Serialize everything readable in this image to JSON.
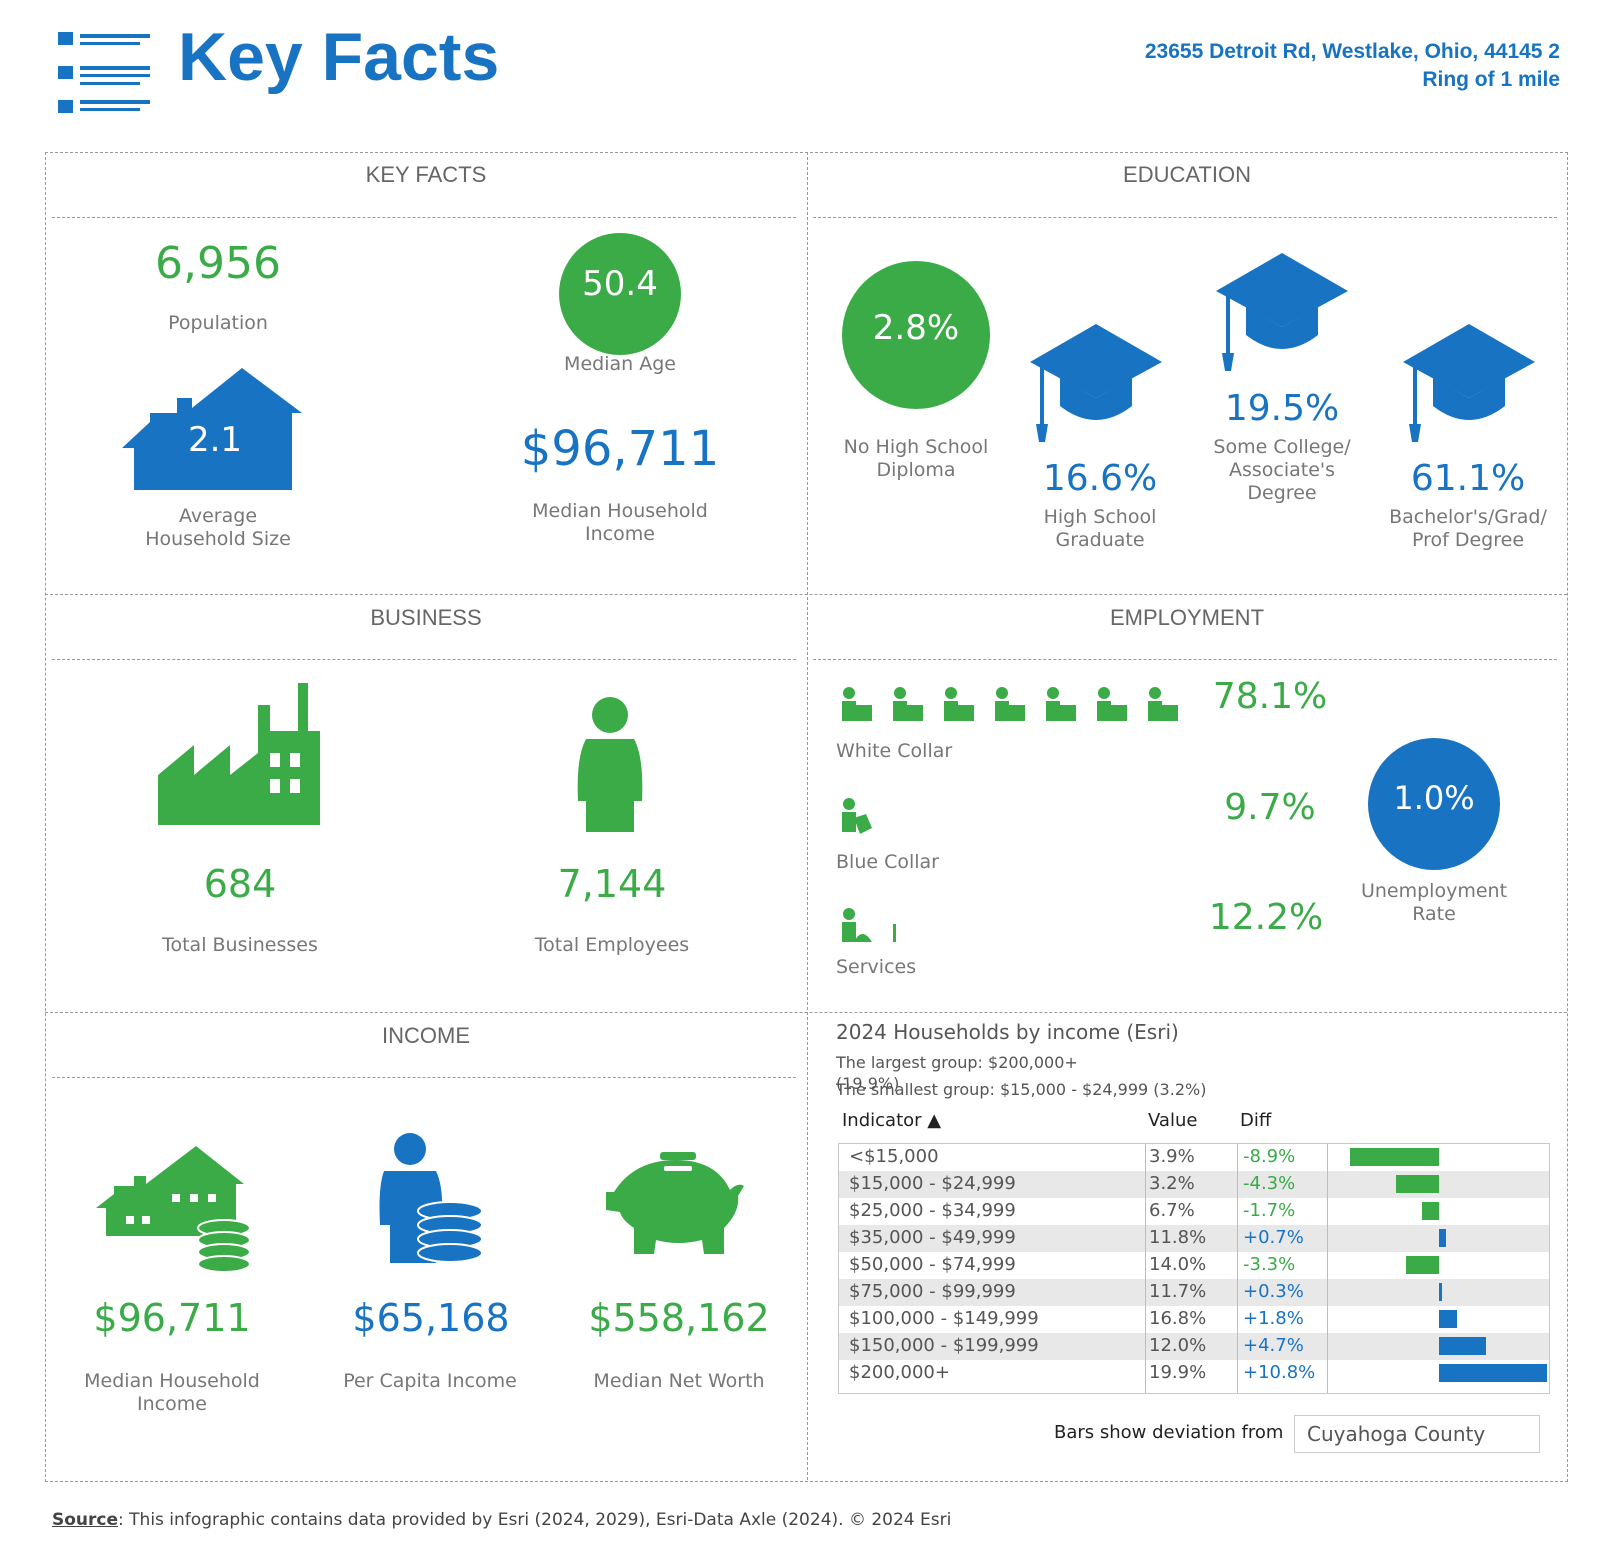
{
  "header": {
    "title": "Key Facts",
    "address_line1": "23655 Detroit Rd, Westlake, Ohio, 44145 2",
    "address_line2": "Ring of 1 mile"
  },
  "key_facts": {
    "section_title": "KEY FACTS",
    "population_value": "6,956",
    "population_label": "Population",
    "median_age_value": "50.4",
    "median_age_label": "Median Age",
    "household_size_value": "2.1",
    "household_size_label_line1": "Average",
    "household_size_label_line2": "Household Size",
    "median_income_value": "$96,711",
    "median_income_label_line1": "Median Household",
    "median_income_label_line2": "Income"
  },
  "education": {
    "section_title": "EDUCATION",
    "no_hs_value": "2.8%",
    "no_hs_label_line1": "No High School",
    "no_hs_label_line2": "Diploma",
    "hs_grad_value": "16.6%",
    "hs_grad_label_line1": "High School",
    "hs_grad_label_line2": "Graduate",
    "some_college_value": "19.5%",
    "some_college_label_line1": "Some College/",
    "some_college_label_line2": "Associate's",
    "some_college_label_line3": "Degree",
    "bachelors_value": "61.1%",
    "bachelors_label_line1": "Bachelor's/Grad/",
    "bachelors_label_line2": "Prof Degree"
  },
  "business": {
    "section_title": "BUSINESS",
    "total_businesses_value": "684",
    "total_businesses_label": "Total Businesses",
    "total_employees_value": "7,144",
    "total_employees_label": "Total Employees"
  },
  "employment": {
    "section_title": "EMPLOYMENT",
    "white_collar_value": "78.1%",
    "white_collar_label": "White Collar",
    "blue_collar_value": "9.7%",
    "blue_collar_label": "Blue Collar",
    "services_value": "12.2%",
    "services_label": "Services",
    "unemployment_value": "1.0%",
    "unemployment_label_line1": "Unemployment",
    "unemployment_label_line2": "Rate"
  },
  "income": {
    "section_title": "INCOME",
    "median_hh_income_value": "$96,711",
    "median_hh_income_label_line1": "Median Household",
    "median_hh_income_label_line2": "Income",
    "per_capita_value": "$65,168",
    "per_capita_label": "Per Capita Income",
    "net_worth_value": "$558,162",
    "net_worth_label": "Median Net Worth"
  },
  "households": {
    "title": "2024 Households by income (Esri)",
    "largest_line1": "The largest group: $200,000+",
    "largest_line2": "(19.9%)",
    "smallest": "The smallest group: $15,000 - $24,999 (3.2%)",
    "col_indicator": "Indicator ▲",
    "col_value": "Value",
    "col_diff": "Diff",
    "deviation_label": "Bars show deviation from",
    "deviation_select": "Cuyahoga County",
    "colors": {
      "negative": "#3aab47",
      "positive": "#1873c2"
    }
  },
  "chart_data": {
    "type": "bar",
    "categories": [
      "<$15,000",
      "$15,000 - $24,999",
      "$25,000 - $34,999",
      "$35,000 - $49,999",
      "$50,000 - $74,999",
      "$75,000 - $99,999",
      "$100,000 - $149,999",
      "$150,000 - $199,999",
      "$200,000+"
    ],
    "values_text": [
      "3.9%",
      "3.2%",
      "6.7%",
      "11.8%",
      "14.0%",
      "11.7%",
      "16.8%",
      "12.0%",
      "19.9%"
    ],
    "diff_text": [
      "-8.9%",
      "-4.3%",
      "-1.7%",
      "+0.7%",
      "-3.3%",
      "+0.3%",
      "+1.8%",
      "+4.7%",
      "+10.8%"
    ],
    "diff": [
      -8.9,
      -4.3,
      -1.7,
      0.7,
      -3.3,
      0.3,
      1.8,
      4.7,
      10.8
    ]
  },
  "source": {
    "label": "Source",
    "text": ": This infographic contains data provided by Esri (2024, 2029), Esri-Data Axle (2024).  © 2024 Esri"
  }
}
